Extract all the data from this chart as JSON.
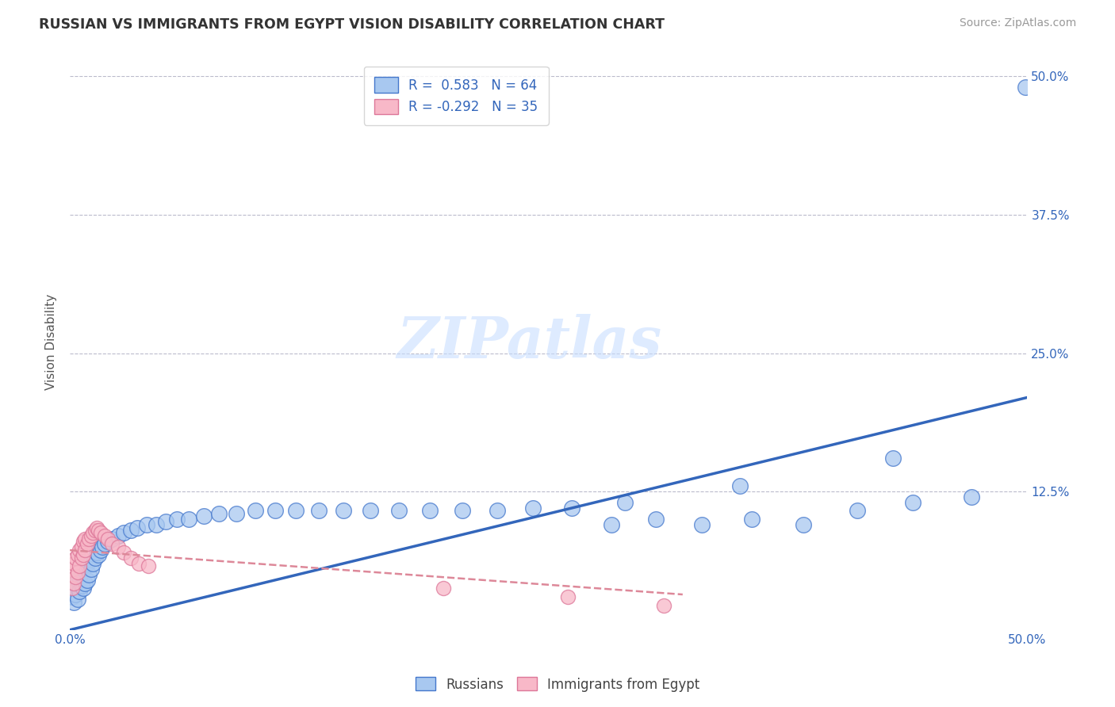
{
  "title": "RUSSIAN VS IMMIGRANTS FROM EGYPT VISION DISABILITY CORRELATION CHART",
  "source": "Source: ZipAtlas.com",
  "ylabel": "Vision Disability",
  "xlim": [
    0.0,
    0.5
  ],
  "ylim": [
    0.0,
    0.52
  ],
  "legend_r_russian": "0.583",
  "legend_n_russian": "64",
  "legend_r_egypt": "-0.292",
  "legend_n_egypt": "35",
  "blue_fill": "#A8C8F0",
  "blue_edge": "#4477CC",
  "pink_fill": "#F8B8C8",
  "pink_edge": "#DD7799",
  "blue_line_color": "#3366BB",
  "pink_line_color": "#DD8899",
  "watermark_color": "#C8DEFF",
  "russians_x": [
    0.001,
    0.002,
    0.002,
    0.003,
    0.003,
    0.004,
    0.004,
    0.005,
    0.005,
    0.006,
    0.006,
    0.007,
    0.007,
    0.008,
    0.008,
    0.009,
    0.009,
    0.01,
    0.011,
    0.012,
    0.013,
    0.014,
    0.015,
    0.016,
    0.017,
    0.018,
    0.02,
    0.022,
    0.025,
    0.028,
    0.032,
    0.035,
    0.04,
    0.045,
    0.05,
    0.056,
    0.062,
    0.07,
    0.078,
    0.087,
    0.097,
    0.107,
    0.118,
    0.13,
    0.143,
    0.157,
    0.172,
    0.188,
    0.205,
    0.223,
    0.242,
    0.262,
    0.283,
    0.306,
    0.33,
    0.356,
    0.383,
    0.411,
    0.44,
    0.471,
    0.499,
    0.35,
    0.29,
    0.43
  ],
  "russians_y": [
    0.03,
    0.025,
    0.038,
    0.032,
    0.042,
    0.028,
    0.045,
    0.035,
    0.048,
    0.04,
    0.052,
    0.038,
    0.055,
    0.042,
    0.058,
    0.045,
    0.06,
    0.05,
    0.055,
    0.06,
    0.065,
    0.07,
    0.068,
    0.072,
    0.075,
    0.078,
    0.08,
    0.082,
    0.085,
    0.088,
    0.09,
    0.092,
    0.095,
    0.095,
    0.098,
    0.1,
    0.1,
    0.103,
    0.105,
    0.105,
    0.108,
    0.108,
    0.108,
    0.108,
    0.108,
    0.108,
    0.108,
    0.108,
    0.108,
    0.108,
    0.11,
    0.11,
    0.095,
    0.1,
    0.095,
    0.1,
    0.095,
    0.108,
    0.115,
    0.12,
    0.49,
    0.13,
    0.115,
    0.155
  ],
  "egypt_x": [
    0.001,
    0.001,
    0.002,
    0.002,
    0.003,
    0.003,
    0.004,
    0.004,
    0.005,
    0.005,
    0.006,
    0.006,
    0.007,
    0.007,
    0.008,
    0.008,
    0.009,
    0.01,
    0.011,
    0.012,
    0.013,
    0.014,
    0.015,
    0.016,
    0.018,
    0.02,
    0.022,
    0.025,
    0.028,
    0.032,
    0.036,
    0.041,
    0.195,
    0.26,
    0.31
  ],
  "egypt_y": [
    0.038,
    0.055,
    0.042,
    0.06,
    0.048,
    0.065,
    0.052,
    0.068,
    0.058,
    0.072,
    0.065,
    0.075,
    0.068,
    0.08,
    0.072,
    0.082,
    0.078,
    0.082,
    0.085,
    0.088,
    0.09,
    0.092,
    0.09,
    0.088,
    0.085,
    0.082,
    0.078,
    0.075,
    0.07,
    0.065,
    0.06,
    0.058,
    0.038,
    0.03,
    0.022
  ]
}
